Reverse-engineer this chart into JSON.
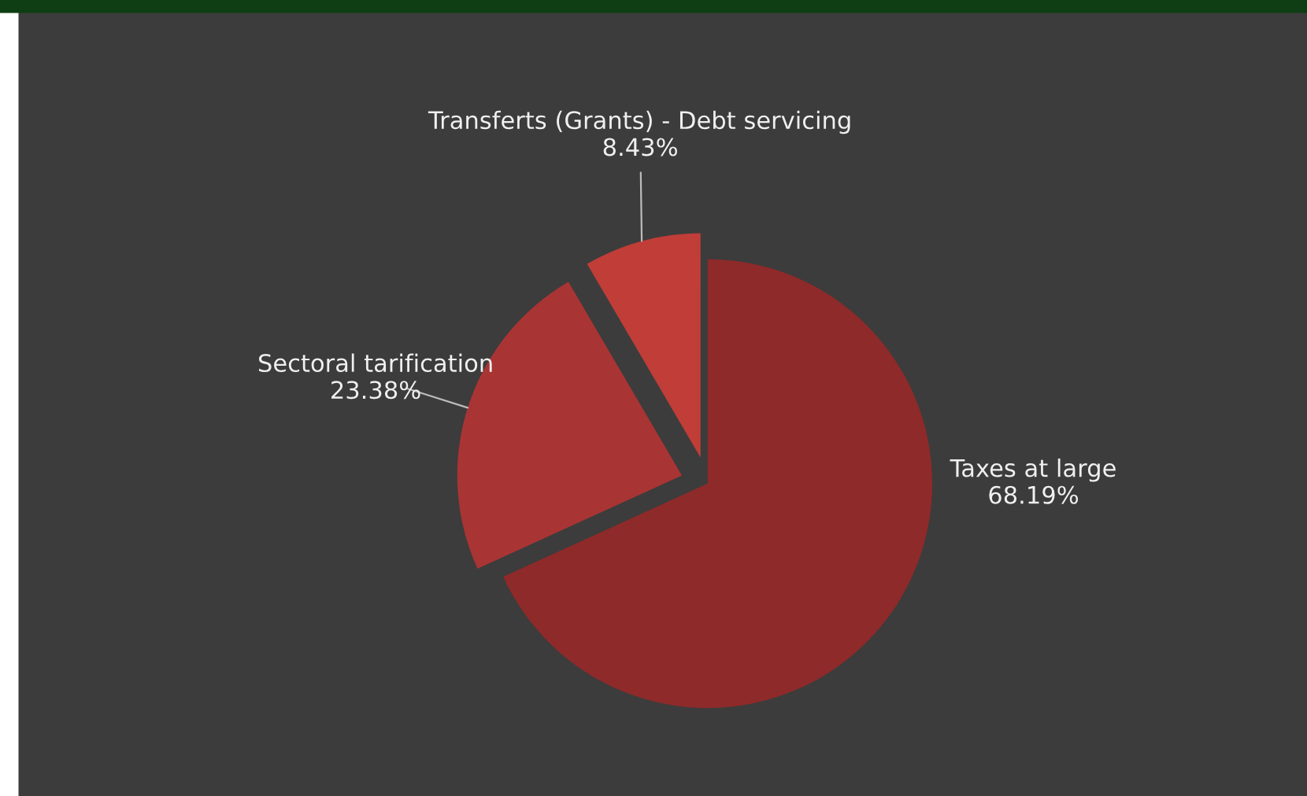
{
  "chart_data": {
    "type": "pie",
    "categories": [
      "Taxes at large",
      "Sectoral tarification",
      "Transferts (Grants) - Debt servicing"
    ],
    "values": [
      68.19,
      23.38,
      8.43
    ],
    "colors": [
      "#8e2a2a",
      "#a93434",
      "#c03d38"
    ],
    "value_labels": [
      "68.19%",
      "23.38%",
      "8.43%"
    ],
    "legend": false
  }
}
